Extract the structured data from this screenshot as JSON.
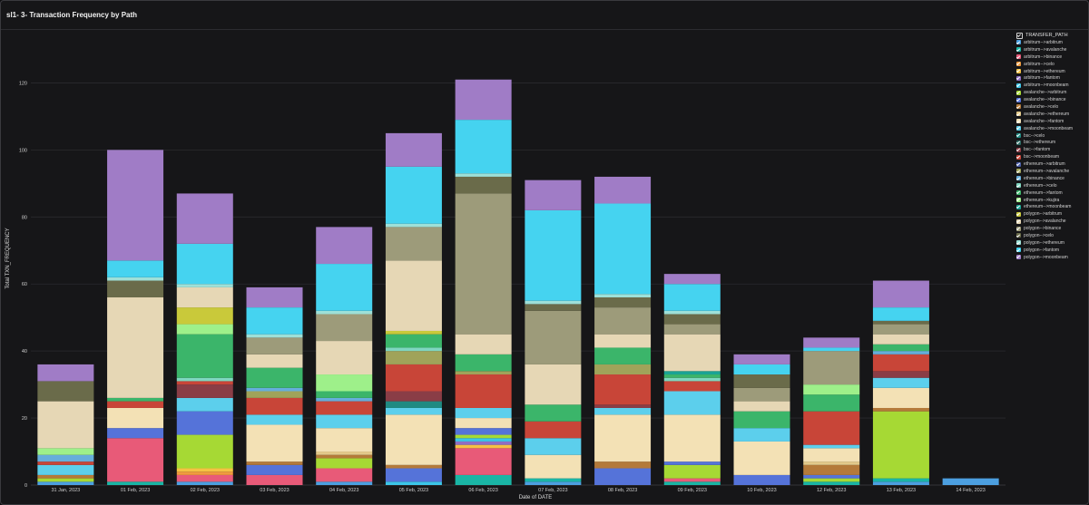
{
  "panel": {
    "title": "sl1- 3- Transaction Frequency by Path"
  },
  "chart_data": {
    "type": "bar",
    "stacked": true,
    "xlabel": "Date of DATE",
    "ylabel": "Total TXN_FREQUENCY",
    "ylim": [
      0,
      135
    ],
    "yticks": [
      0,
      20,
      40,
      60,
      80,
      100,
      120
    ],
    "grid": true,
    "legend_title": "TRANSFER_PATH",
    "legend_position": "right",
    "categories": [
      "31 Jan, 2023",
      "01 Feb, 2023",
      "02 Feb, 2023",
      "03 Feb, 2023",
      "04 Feb, 2023",
      "05 Feb, 2023",
      "06 Feb, 2023",
      "07 Feb, 2023",
      "08 Feb, 2023",
      "09 Feb, 2023",
      "10 Feb, 2023",
      "12 Feb, 2023",
      "13 Feb, 2023",
      "14 Feb, 2023"
    ],
    "series": [
      {
        "name": "arbitrum-->arbitrum",
        "color": "#4c9fe0",
        "values": [
          1,
          0,
          1,
          0,
          1,
          0,
          0,
          1,
          0,
          0,
          0,
          0,
          1,
          2
        ]
      },
      {
        "name": "arbitrum-->avalanche",
        "color": "#1ab5a5",
        "values": [
          0,
          1,
          0,
          0,
          0,
          0,
          3,
          1,
          0,
          1,
          0,
          1,
          1,
          0
        ]
      },
      {
        "name": "arbitrum-->binance",
        "color": "#e85a78",
        "values": [
          0,
          13,
          2,
          3,
          4,
          0,
          8,
          0,
          0,
          1,
          0,
          0,
          0,
          0
        ]
      },
      {
        "name": "arbitrum-->celo",
        "color": "#f09a3e",
        "values": [
          0,
          0,
          1,
          0,
          0,
          0,
          0,
          0,
          0,
          0,
          0,
          0,
          0,
          0
        ]
      },
      {
        "name": "arbitrum-->ethereum",
        "color": "#f5c242",
        "values": [
          0,
          0,
          1,
          0,
          0,
          0,
          1,
          0,
          0,
          0,
          0,
          0,
          0,
          0
        ]
      },
      {
        "name": "arbitrum-->fantom",
        "color": "#8f6ec4",
        "values": [
          0,
          0,
          0,
          0,
          0,
          0,
          1,
          0,
          0,
          0,
          0,
          0,
          0,
          0
        ]
      },
      {
        "name": "arbitrum-->moonbeam",
        "color": "#3cc5e8",
        "values": [
          0,
          0,
          0,
          0,
          0,
          1,
          1,
          0,
          0,
          0,
          0,
          0,
          0,
          0
        ]
      },
      {
        "name": "avalanche-->arbitrum",
        "color": "#a6d934",
        "values": [
          1,
          0,
          10,
          0,
          3,
          0,
          1,
          0,
          0,
          4,
          0,
          1,
          20,
          0
        ]
      },
      {
        "name": "avalanche-->binance",
        "color": "#5573d9",
        "values": [
          0,
          3,
          7,
          3,
          0,
          4,
          2,
          0,
          5,
          1,
          3,
          1,
          0,
          0
        ]
      },
      {
        "name": "avalanche-->celo",
        "color": "#b47a3a",
        "values": [
          1,
          0,
          0,
          1,
          1,
          1,
          0,
          0,
          2,
          0,
          0,
          3,
          1,
          0
        ]
      },
      {
        "name": "avalanche-->ethereum",
        "color": "#e3c98a",
        "values": [
          0,
          0,
          0,
          0,
          1,
          0,
          0,
          0,
          0,
          0,
          0,
          1,
          0,
          0
        ]
      },
      {
        "name": "avalanche-->fantom",
        "color": "#f3e1b5",
        "values": [
          0,
          6,
          0,
          11,
          7,
          15,
          3,
          7,
          14,
          14,
          10,
          4,
          6,
          0
        ]
      },
      {
        "name": "avalanche-->moonbeam",
        "color": "#5ccfec",
        "values": [
          3,
          0,
          4,
          3,
          4,
          2,
          3,
          5,
          2,
          7,
          4,
          1,
          3,
          0
        ]
      },
      {
        "name": "bsc-->celo",
        "color": "#1f8a82",
        "values": [
          0,
          0,
          0,
          0,
          0,
          2,
          0,
          0,
          0,
          0,
          0,
          0,
          0,
          0
        ]
      },
      {
        "name": "bsc-->ethereum",
        "color": "#2e6a64",
        "values": [
          0,
          0,
          0,
          0,
          0,
          0,
          0,
          0,
          0,
          0,
          0,
          0,
          0,
          0
        ]
      },
      {
        "name": "bsc-->fantom",
        "color": "#8a3d46",
        "values": [
          0,
          0,
          4,
          0,
          0,
          3,
          0,
          0,
          1,
          0,
          0,
          0,
          2,
          0
        ]
      },
      {
        "name": "bsc-->moonbeam",
        "color": "#c84538",
        "values": [
          1,
          2,
          1,
          5,
          4,
          8,
          10,
          5,
          9,
          3,
          0,
          10,
          5,
          0
        ]
      },
      {
        "name": "ethereum-->arbitrum",
        "color": "#4a5ea8",
        "values": [
          0,
          0,
          0,
          0,
          0,
          0,
          0,
          0,
          0,
          0,
          0,
          0,
          0,
          0
        ]
      },
      {
        "name": "ethereum-->avalanche",
        "color": "#a0a35a",
        "values": [
          0,
          0,
          0,
          2,
          0,
          4,
          1,
          0,
          3,
          0,
          0,
          0,
          0,
          0
        ]
      },
      {
        "name": "ethereum-->binance",
        "color": "#66aedb",
        "values": [
          2,
          0,
          0,
          1,
          1,
          0,
          0,
          0,
          0,
          0,
          0,
          0,
          1,
          0
        ]
      },
      {
        "name": "ethereum-->celo",
        "color": "#7fd6c0",
        "values": [
          0,
          0,
          1,
          0,
          0,
          1,
          0,
          0,
          0,
          1,
          0,
          0,
          0,
          0
        ]
      },
      {
        "name": "ethereum-->fantom",
        "color": "#3bb56a",
        "values": [
          0,
          1,
          13,
          6,
          2,
          4,
          5,
          5,
          5,
          1,
          5,
          5,
          2,
          0
        ]
      },
      {
        "name": "ethereum-->kujira",
        "color": "#9ef08a",
        "values": [
          2,
          0,
          3,
          0,
          5,
          0,
          0,
          0,
          0,
          0,
          0,
          3,
          0,
          0
        ]
      },
      {
        "name": "ethereum-->moonbeam",
        "color": "#1aa394",
        "values": [
          0,
          0,
          0,
          0,
          0,
          0,
          0,
          0,
          0,
          1,
          0,
          0,
          0,
          0
        ]
      },
      {
        "name": "polygon-->arbitrum",
        "color": "#c9c93a",
        "values": [
          0,
          0,
          5,
          0,
          0,
          1,
          0,
          0,
          0,
          0,
          0,
          0,
          0,
          0
        ]
      },
      {
        "name": "polygon-->avalanche",
        "color": "#e6d7b5",
        "values": [
          14,
          30,
          6,
          4,
          10,
          21,
          6,
          12,
          4,
          11,
          3,
          0,
          3,
          0
        ]
      },
      {
        "name": "polygon-->binance",
        "color": "#9d9b7a",
        "values": [
          0,
          0,
          0,
          5,
          8,
          10,
          42,
          16,
          8,
          3,
          4,
          10,
          3,
          0
        ]
      },
      {
        "name": "polygon-->celo",
        "color": "#6a6b4a",
        "values": [
          6,
          5,
          0,
          0,
          0,
          0,
          5,
          2,
          3,
          3,
          4,
          0,
          1,
          0
        ]
      },
      {
        "name": "polygon-->ethereum",
        "color": "#9ee0d8",
        "values": [
          0,
          1,
          1,
          1,
          1,
          1,
          1,
          1,
          1,
          1,
          0,
          0,
          0,
          0
        ]
      },
      {
        "name": "polygon-->fantom",
        "color": "#45d3f0",
        "values": [
          0,
          5,
          12,
          8,
          14,
          17,
          16,
          27,
          27,
          8,
          3,
          1,
          4,
          0
        ]
      },
      {
        "name": "polygon-->moonbeam",
        "color": "#a07cc6",
        "values": [
          5,
          33,
          15,
          6,
          11,
          10,
          12,
          9,
          8,
          3,
          3,
          3,
          8,
          0
        ]
      }
    ]
  }
}
